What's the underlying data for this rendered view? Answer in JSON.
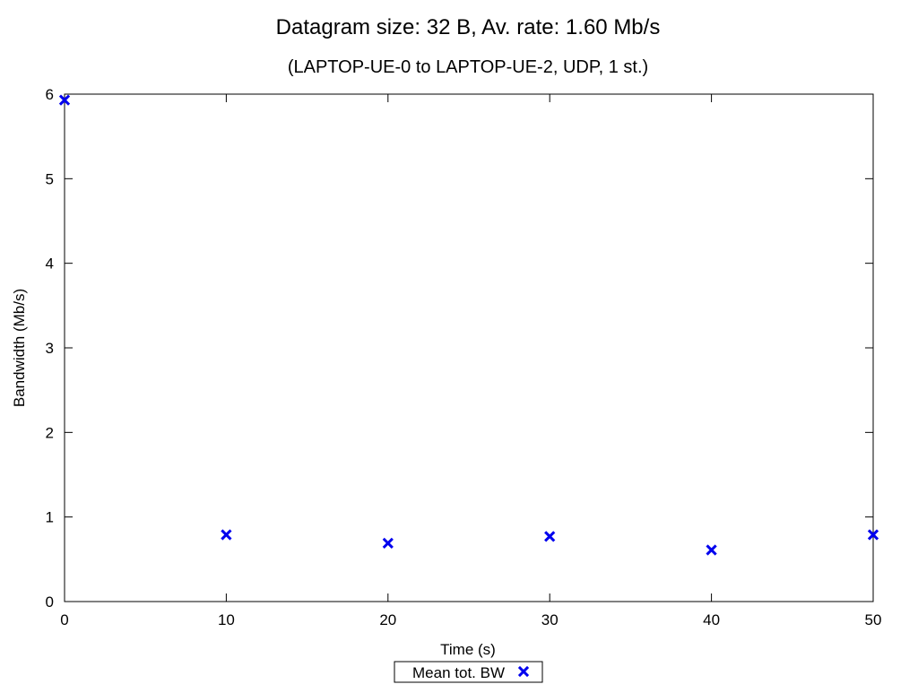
{
  "chart_data": {
    "type": "scatter",
    "title": "Datagram size: 32 B, Av. rate: 1.60 Mb/s",
    "subtitle": "(LAPTOP-UE-0 to LAPTOP-UE-2, UDP, 1 st.)",
    "xlabel": "Time (s)",
    "ylabel": "Bandwidth (Mb/s)",
    "xlim": [
      0,
      50
    ],
    "ylim": [
      0,
      6
    ],
    "xticks": [
      0,
      10,
      20,
      30,
      40,
      50
    ],
    "yticks": [
      0,
      1,
      2,
      3,
      4,
      5,
      6
    ],
    "grid": false,
    "legend_position": "bottom-center",
    "series": [
      {
        "name": "Mean tot. BW",
        "marker": "x",
        "color": "#0000ee",
        "x": [
          0,
          10,
          20,
          30,
          40,
          50
        ],
        "y": [
          5.93,
          0.79,
          0.69,
          0.77,
          0.61,
          0.79
        ]
      }
    ]
  }
}
